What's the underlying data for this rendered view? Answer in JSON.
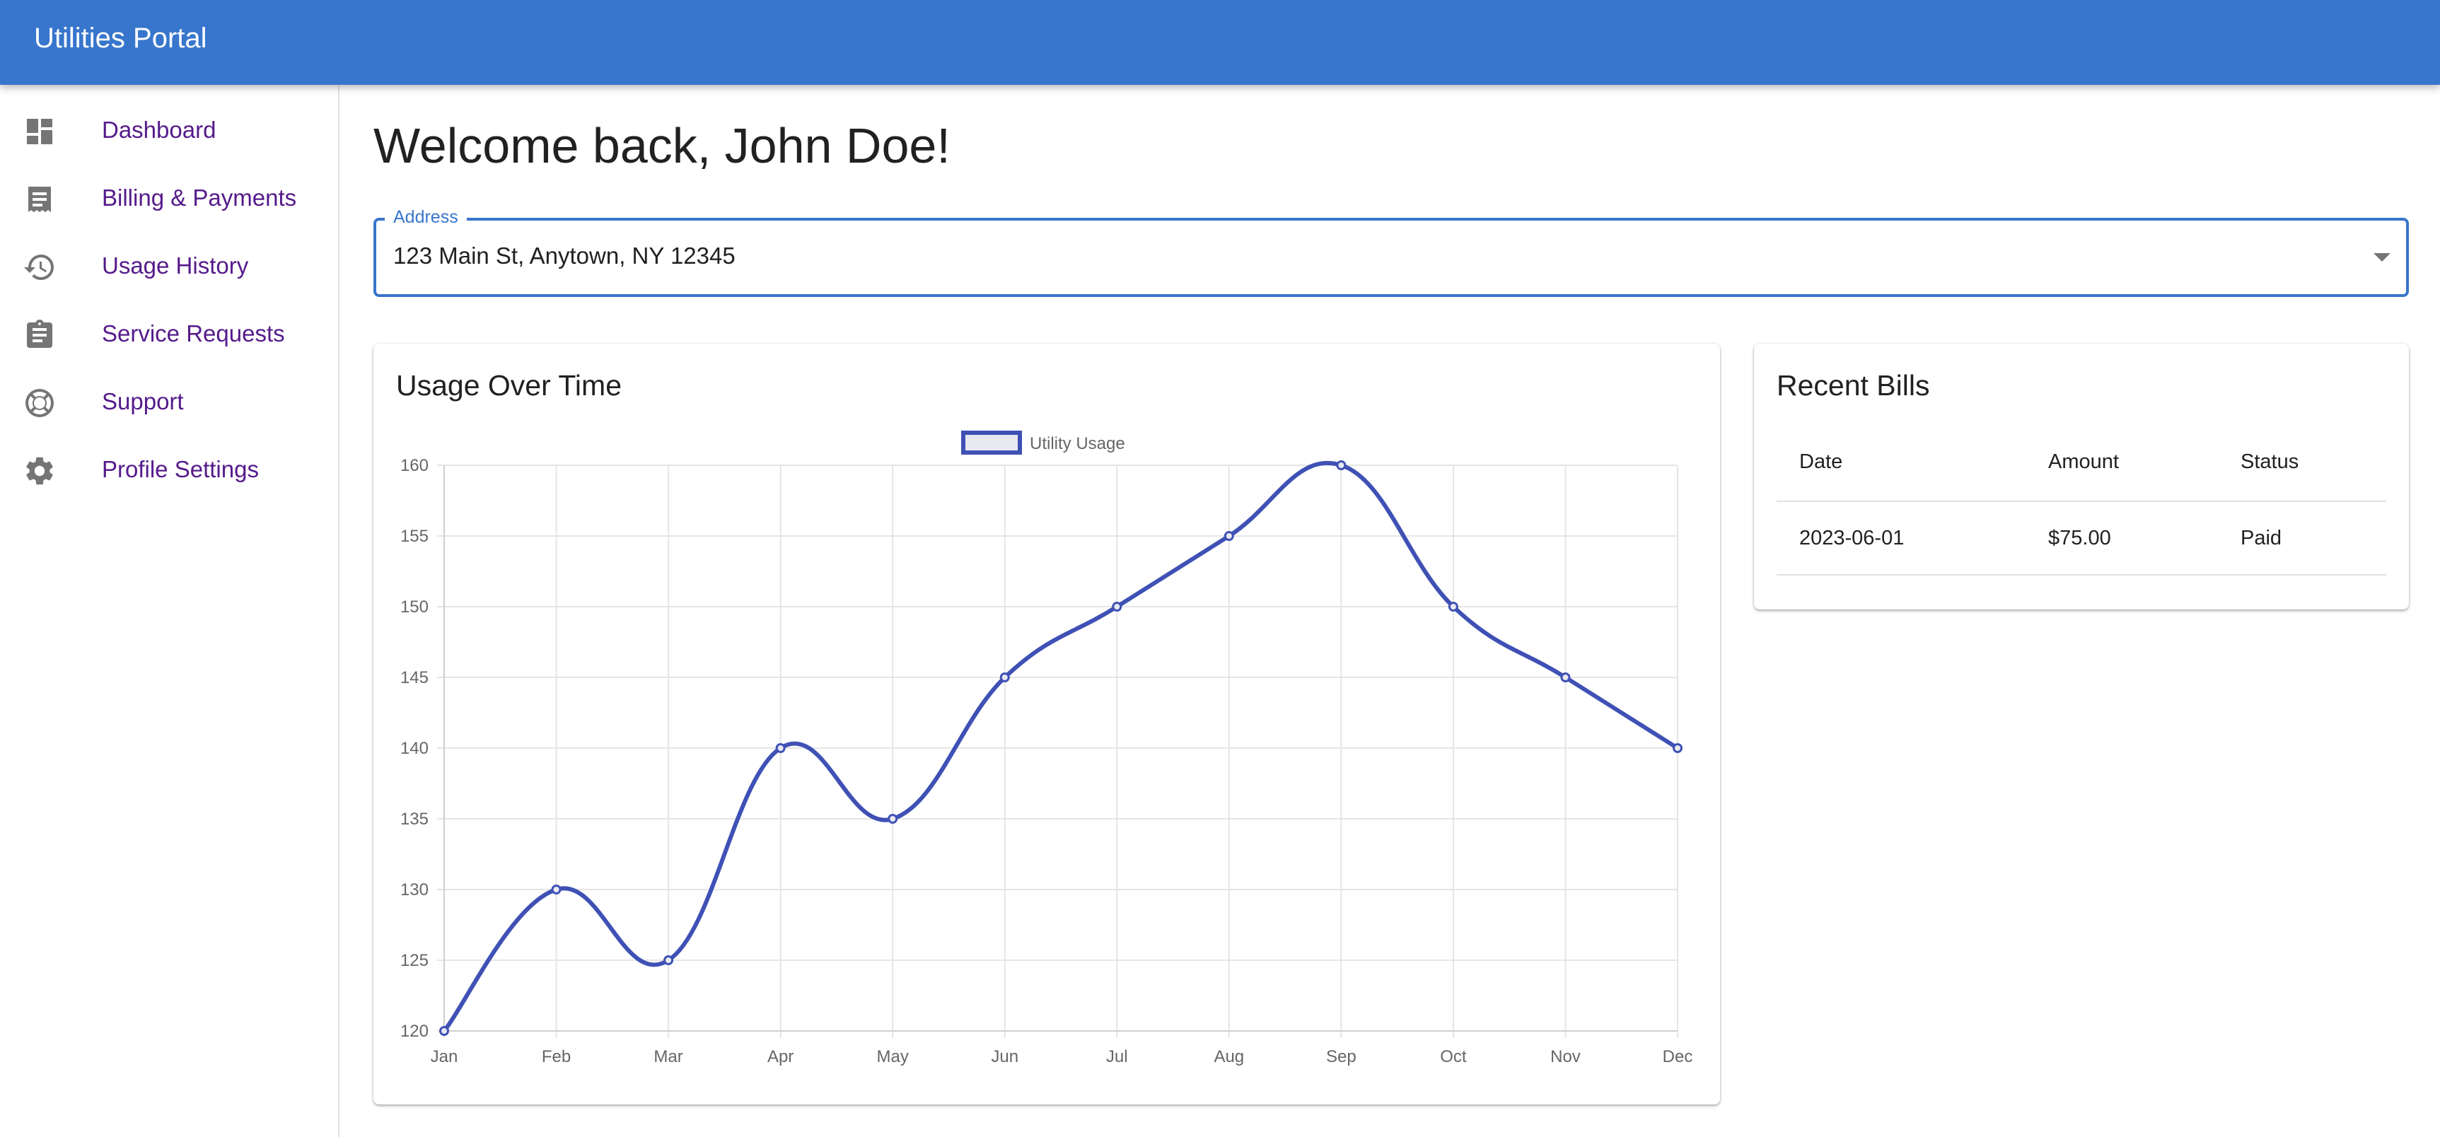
{
  "app": {
    "title": "Utilities Portal",
    "accent_color": "#3876cd",
    "nav_link_color": "#551a8b"
  },
  "sidebar": {
    "items": [
      {
        "label": "Dashboard",
        "icon": "dashboard-icon"
      },
      {
        "label": "Billing & Payments",
        "icon": "receipt-icon"
      },
      {
        "label": "Usage History",
        "icon": "history-icon"
      },
      {
        "label": "Service Requests",
        "icon": "clipboard-icon"
      },
      {
        "label": "Support",
        "icon": "lifebuoy-icon"
      },
      {
        "label": "Profile Settings",
        "icon": "gear-icon"
      }
    ]
  },
  "main": {
    "welcome": "Welcome back, John Doe!",
    "address": {
      "label": "Address",
      "value": "123 Main St, Anytown, NY 12345"
    }
  },
  "usage_card": {
    "title": "Usage Over Time"
  },
  "chart_data": {
    "type": "line",
    "title": "",
    "xlabel": "",
    "ylabel": "",
    "categories": [
      "Jan",
      "Feb",
      "Mar",
      "Apr",
      "May",
      "Jun",
      "Jul",
      "Aug",
      "Sep",
      "Oct",
      "Nov",
      "Dec"
    ],
    "series": [
      {
        "name": "Utility Usage",
        "values": [
          120,
          130,
          125,
          140,
          135,
          145,
          150,
          155,
          160,
          150,
          145,
          140
        ],
        "color": "#3f51b5"
      }
    ],
    "ylim": [
      120,
      160
    ],
    "yticks": [
      120,
      125,
      130,
      135,
      140,
      145,
      150,
      155,
      160
    ],
    "grid": true,
    "legend": "top-center"
  },
  "bills_card": {
    "title": "Recent Bills",
    "columns": [
      "Date",
      "Amount",
      "Status"
    ],
    "rows": [
      {
        "date": "2023-06-01",
        "amount": "$75.00",
        "status": "Paid"
      }
    ]
  }
}
